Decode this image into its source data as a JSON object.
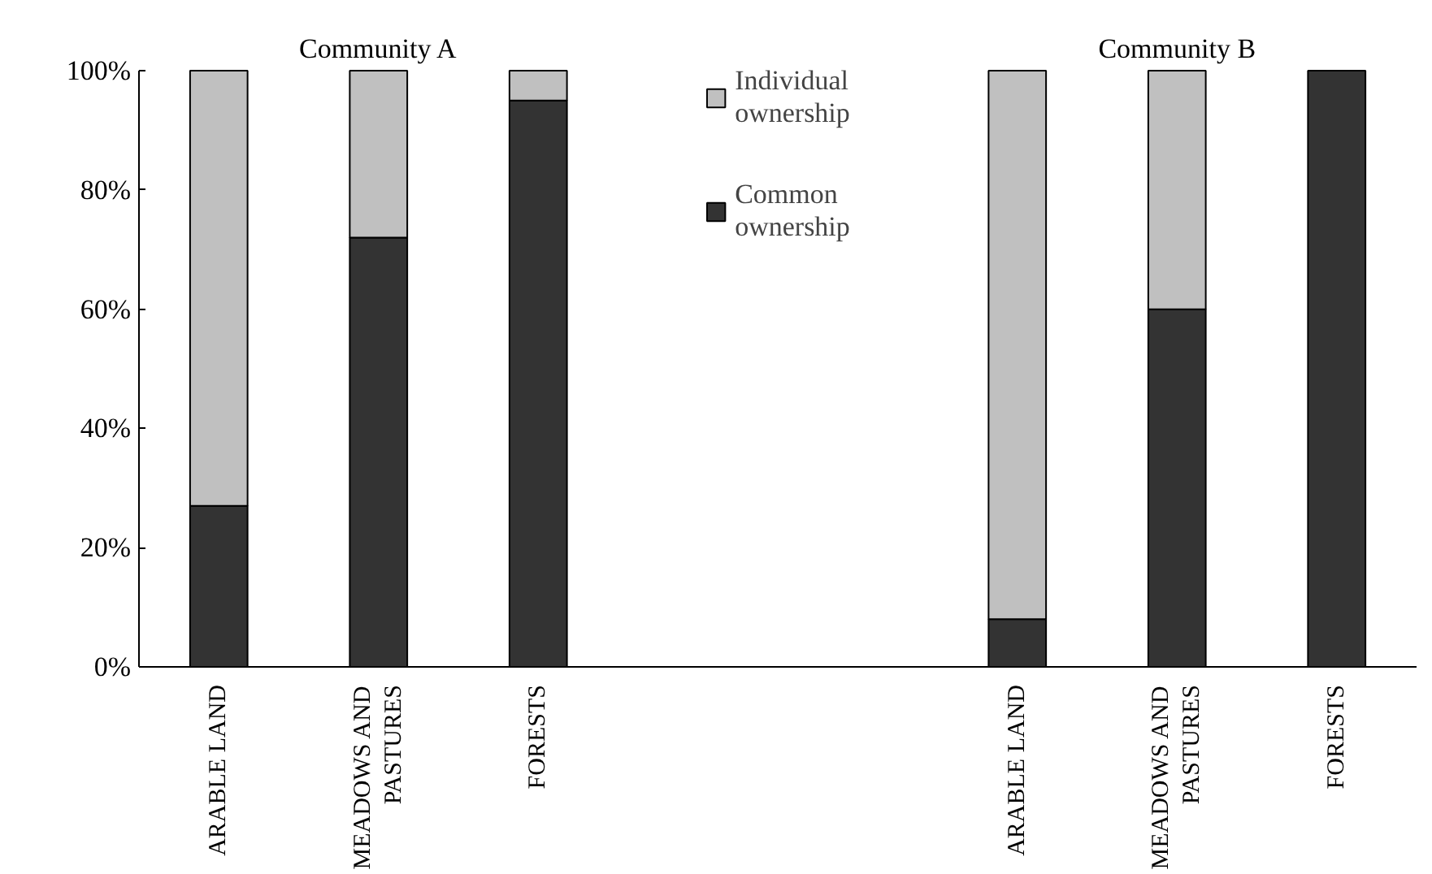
{
  "chart_data": {
    "type": "bar",
    "stacked": true,
    "categories": [
      "ARABLE LAND",
      "MEADOWS AND PASTURES",
      "FORESTS",
      null,
      null,
      "ARABLE LAND",
      "MEADOWS AND PASTURES",
      "FORESTS"
    ],
    "series": [
      {
        "name": "Common ownership",
        "color": "#333333",
        "values": [
          27,
          72,
          95,
          null,
          null,
          8,
          60,
          100
        ]
      },
      {
        "name": "Individual ownership",
        "color": "#c0c0c0",
        "values": [
          73,
          28,
          5,
          null,
          null,
          92,
          40,
          0
        ]
      }
    ],
    "ylim": [
      0,
      100
    ],
    "yticks": [
      {
        "value": 0,
        "label": "0%"
      },
      {
        "value": 20,
        "label": "20%"
      },
      {
        "value": 40,
        "label": "40%"
      },
      {
        "value": 60,
        "label": "60%"
      },
      {
        "value": 80,
        "label": "80%"
      },
      {
        "value": 100,
        "label": "100%"
      }
    ],
    "annotations": [
      "Community A",
      "Community B"
    ],
    "legend": "top",
    "grid": false
  }
}
